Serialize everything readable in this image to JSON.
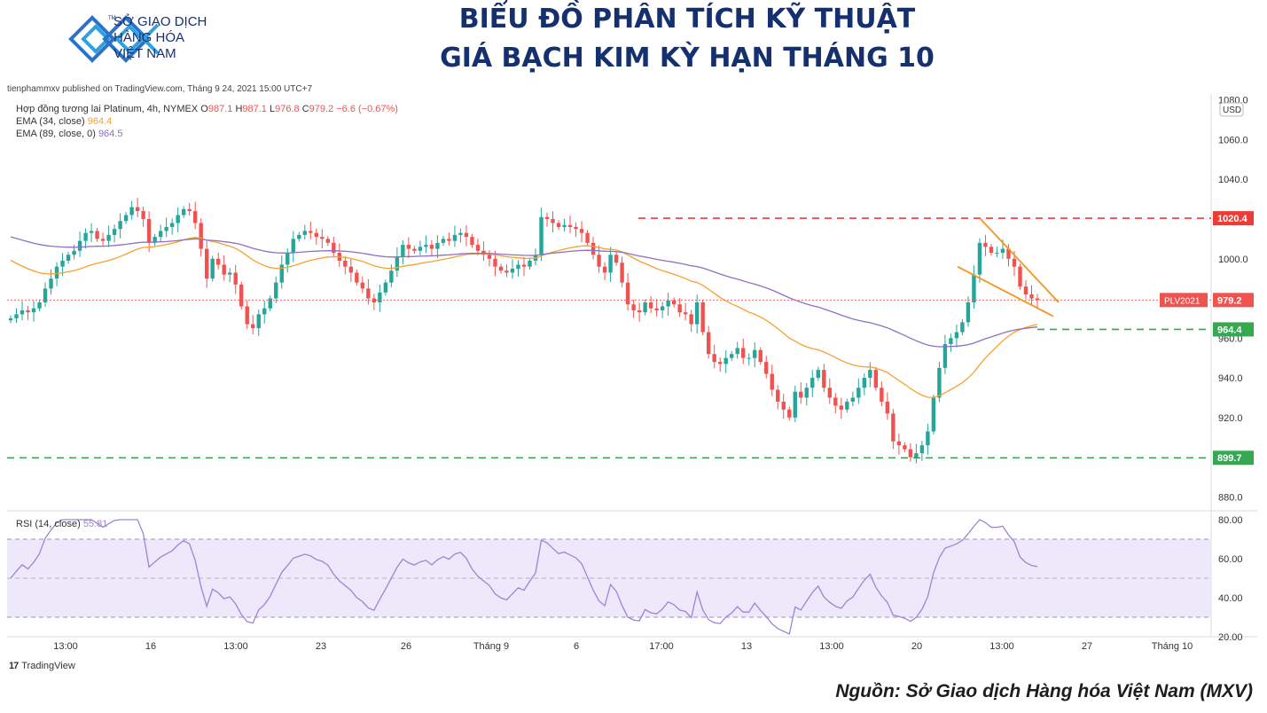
{
  "header": {
    "org_lines": [
      "SỞ GIAO DỊCH",
      "HÀNG HÓA",
      "VIỆT NAM"
    ],
    "tm": "TM",
    "title_line1": "BIỂU ĐỒ PHÂN TÍCH KỸ THUẬT",
    "title_line2": "GIÁ BẠCH KIM KỲ HẠN THÁNG 10"
  },
  "published": "tienphammxv published on TradingView.com, Tháng 9 24, 2021 15:00 UTC+7",
  "legend": {
    "symbol": "Hợp đồng tương lai Platinum, 4h, NYMEX",
    "ohlc": [
      {
        "k": "O",
        "v": "987.1"
      },
      {
        "k": "H",
        "v": "987.1"
      },
      {
        "k": "L",
        "v": "976.8"
      },
      {
        "k": "C",
        "v": "979.2"
      }
    ],
    "change": "−6.6 (−0.67%)",
    "ema34_label": "EMA (34, close)",
    "ema34_value": "964.4",
    "ema89_label": "EMA (89, close, 0)",
    "ema89_value": "964.5",
    "rsi_label": "RSI (14, close)",
    "rsi_value": "55.81"
  },
  "colors": {
    "up": "#26a69a",
    "down": "#ef5350",
    "ema34": "#f7a030",
    "ema89": "#8e6fc7",
    "rsi": "#9f84d6",
    "resistance": "#ef3b36",
    "support": "#36a852",
    "wedge": "#f7941d",
    "title": "#15306e"
  },
  "chart_data": [
    {
      "type": "candlestick",
      "currency": "USD",
      "ylim": [
        873,
        1083
      ],
      "price_axis_ticks": [
        "1080.0",
        "1060.0",
        "1040.0",
        "1020.0",
        "1000.0",
        "980.0",
        "960.0",
        "940.0",
        "920.0",
        "900.0",
        "880.0"
      ],
      "x_tick_labels": [
        "13:00",
        "16",
        "13:00",
        "23",
        "26",
        "Tháng 9",
        "6",
        "17:00",
        "13",
        "13:00",
        "20",
        "13:00",
        "27",
        "Tháng 10"
      ],
      "close": [
        970,
        972,
        974,
        973,
        975,
        978,
        985,
        990,
        996,
        999,
        1002,
        1004,
        1009,
        1013,
        1014,
        1010,
        1009,
        1012,
        1015,
        1019,
        1022,
        1026,
        1024,
        1020,
        1008,
        1011,
        1014,
        1016,
        1018,
        1022,
        1025,
        1024,
        1018,
        1005,
        990,
        1000,
        997,
        992,
        993,
        987,
        976,
        967,
        965,
        972,
        975,
        980,
        988,
        997,
        1003,
        1010,
        1012,
        1014,
        1013,
        1011,
        1010,
        1008,
        1003,
        999,
        996,
        993,
        988,
        985,
        980,
        978,
        983,
        988,
        994,
        1001,
        1007,
        1005,
        1004,
        1006,
        1007,
        1005,
        1008,
        1010,
        1009,
        1012,
        1013,
        1011,
        1007,
        1004,
        1002,
        1000,
        996,
        994,
        993,
        995,
        997,
        996,
        999,
        1002,
        1021,
        1020,
        1018,
        1016,
        1017,
        1016,
        1015,
        1013,
        1008,
        1002,
        996,
        993,
        1002,
        998,
        988,
        977,
        974,
        973,
        978,
        975,
        974,
        976,
        979,
        977,
        973,
        972,
        967,
        978,
        963,
        952,
        948,
        947,
        950,
        952,
        955,
        950,
        950,
        954,
        948,
        942,
        934,
        928,
        924,
        920,
        933,
        930,
        935,
        940,
        944,
        935,
        930,
        926,
        924,
        928,
        930,
        935,
        940,
        944,
        935,
        928,
        922,
        908,
        906,
        904,
        900,
        902,
        906,
        913,
        930,
        945,
        957,
        960,
        963,
        968,
        978,
        992,
        1008,
        1006,
        1003,
        1003,
        1005,
        1000,
        996,
        986,
        982,
        980,
        979.2
      ],
      "ema34_last": 964.4,
      "ema89_last": 964.5,
      "levels": [
        {
          "name": "resistance",
          "value": 1020.4,
          "label": "1020.4"
        },
        {
          "name": "last",
          "value": 979.2,
          "label": "979.2",
          "tag": "PLV2021"
        },
        {
          "name": "ema",
          "value": 964.4,
          "label": "964.4"
        },
        {
          "name": "support",
          "value": 899.7,
          "label": "899.7"
        }
      ]
    },
    {
      "type": "line",
      "series": [
        {
          "name": "RSI (14, close)"
        }
      ],
      "ylim": [
        20,
        80
      ],
      "band": [
        30,
        70
      ],
      "midline": 50,
      "y_tick_labels": [
        "80.00",
        "60.00",
        "40.00",
        "20.00"
      ]
    }
  ],
  "footer": {
    "tv_logo": "TradingView",
    "source": "Nguồn: Sở Giao dịch Hàng hóa Việt Nam (MXV)"
  }
}
